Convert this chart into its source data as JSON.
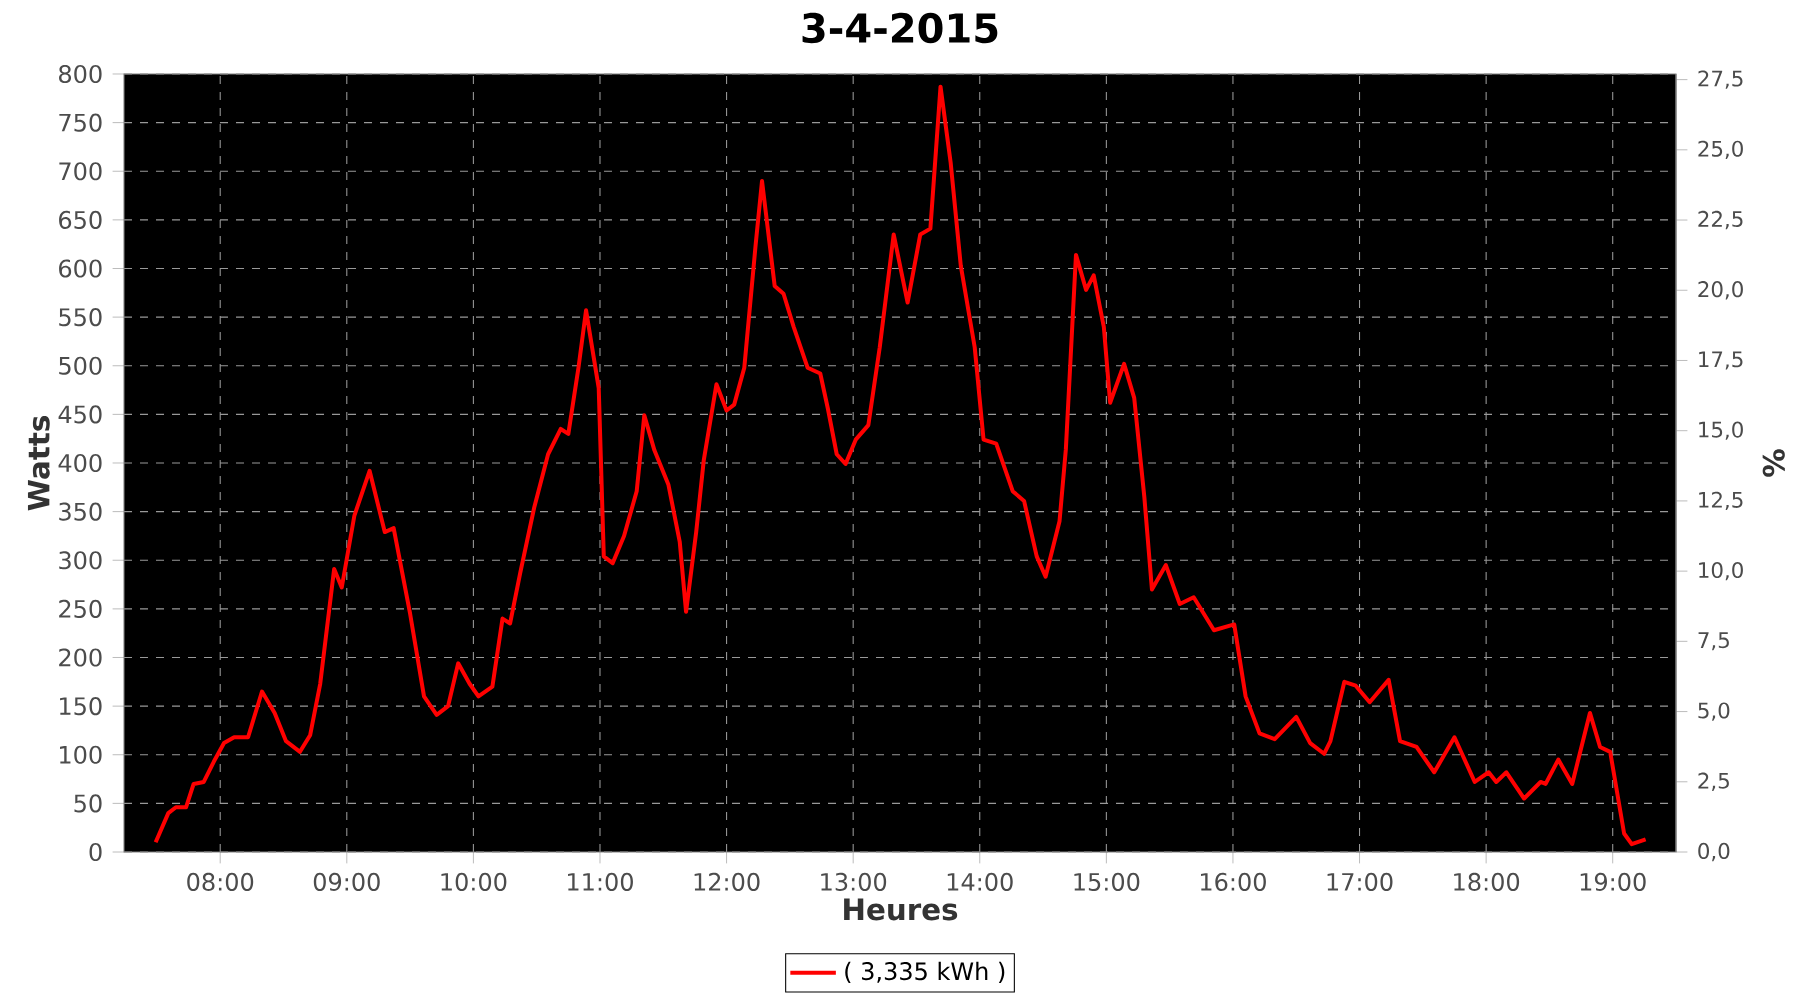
{
  "chart_data": {
    "type": "line",
    "title": "3-4-2015",
    "xlabel": "Heures",
    "ylabel": "Watts",
    "y2label": "%",
    "x": [
      7.49,
      7.59,
      7.65,
      7.73,
      7.79,
      7.87,
      7.95,
      8.03,
      8.11,
      8.22,
      8.33,
      8.43,
      8.52,
      8.63,
      8.71,
      8.79,
      8.9,
      8.96,
      9.06,
      9.18,
      9.3,
      9.37,
      9.5,
      9.61,
      9.71,
      9.8,
      9.88,
      9.97,
      10.04,
      10.15,
      10.23,
      10.29,
      10.37,
      10.48,
      10.59,
      10.69,
      10.75,
      10.83,
      10.89,
      10.99,
      11.03,
      11.1,
      11.19,
      11.29,
      11.35,
      11.43,
      11.54,
      11.63,
      11.68,
      11.76,
      11.82,
      11.92,
      12.0,
      12.06,
      12.14,
      12.23,
      12.28,
      12.38,
      12.45,
      12.53,
      12.64,
      12.74,
      12.8,
      12.87,
      12.94,
      13.02,
      13.12,
      13.21,
      13.32,
      13.43,
      13.53,
      13.61,
      13.69,
      13.77,
      13.85,
      13.96,
      14.03,
      14.13,
      14.26,
      14.35,
      14.45,
      14.52,
      14.63,
      14.68,
      14.76,
      14.84,
      14.9,
      14.98,
      15.03,
      15.14,
      15.22,
      15.3,
      15.36,
      15.47,
      15.58,
      15.69,
      15.85,
      16.01,
      16.1,
      16.21,
      16.33,
      16.5,
      16.61,
      16.72,
      16.77,
      16.88,
      16.97,
      17.08,
      17.23,
      17.32,
      17.45,
      17.59,
      17.75,
      17.91,
      18.02,
      18.08,
      18.16,
      18.3,
      18.43,
      18.47,
      18.57,
      18.68,
      18.82,
      18.9,
      18.98,
      19.09,
      19.15,
      19.26
    ],
    "series": [
      {
        "name": "( 3,335 kWh )",
        "color": "#ff0000",
        "values": [
          10,
          40,
          46,
          46,
          70,
          72,
          93,
          112,
          118,
          118,
          165,
          143,
          114,
          103,
          120,
          173,
          291,
          272,
          346,
          392,
          329,
          333,
          245,
          160,
          141,
          150,
          194,
          173,
          160,
          170,
          240,
          235,
          287,
          354,
          409,
          435,
          430,
          498,
          557,
          477,
          304,
          297,
          325,
          371,
          449,
          413,
          378,
          319,
          247,
          329,
          403,
          481,
          454,
          460,
          498,
          625,
          690,
          582,
          574,
          540,
          498,
          492,
          456,
          409,
          399,
          424,
          439,
          519,
          635,
          565,
          635,
          641,
          787,
          709,
          603,
          519,
          424,
          420,
          371,
          361,
          304,
          283,
          340,
          414,
          614,
          578,
          593,
          540,
          462,
          502,
          467,
          365,
          270,
          295,
          255,
          262,
          228,
          234,
          160,
          122,
          116,
          139,
          112,
          101,
          114,
          175,
          171,
          154,
          177,
          114,
          108,
          82,
          118,
          72,
          82,
          72,
          82,
          55,
          72,
          70,
          95,
          70,
          143,
          108,
          103,
          19,
          8,
          13
        ]
      }
    ],
    "xlim": [
      7.24,
      19.5
    ],
    "xticks": [
      {
        "value": 8,
        "label": "08:00"
      },
      {
        "value": 9,
        "label": "09:00"
      },
      {
        "value": 10,
        "label": "10:00"
      },
      {
        "value": 11,
        "label": "11:00"
      },
      {
        "value": 12,
        "label": "12:00"
      },
      {
        "value": 13,
        "label": "13:00"
      },
      {
        "value": 14,
        "label": "14:00"
      },
      {
        "value": 15,
        "label": "15:00"
      },
      {
        "value": 16,
        "label": "16:00"
      },
      {
        "value": 17,
        "label": "17:00"
      },
      {
        "value": 18,
        "label": "18:00"
      },
      {
        "value": 19,
        "label": "19:00"
      }
    ],
    "ylim": [
      0,
      800
    ],
    "yticks": [
      0,
      50,
      100,
      150,
      200,
      250,
      300,
      350,
      400,
      450,
      500,
      550,
      600,
      650,
      700,
      750,
      800
    ],
    "y2lim": [
      0,
      27.7
    ],
    "y2ticks": [
      {
        "value": 0,
        "label": "0,0"
      },
      {
        "value": 2.5,
        "label": "2,5"
      },
      {
        "value": 5,
        "label": "5,0"
      },
      {
        "value": 7.5,
        "label": "7,5"
      },
      {
        "value": 10,
        "label": "10,0"
      },
      {
        "value": 12.5,
        "label": "12,5"
      },
      {
        "value": 15,
        "label": "15,0"
      },
      {
        "value": 17.5,
        "label": "17,5"
      },
      {
        "value": 20,
        "label": "20,0"
      },
      {
        "value": 22.5,
        "label": "22,5"
      },
      {
        "value": 25,
        "label": "25,0"
      },
      {
        "value": 27.5,
        "label": "27,5"
      }
    ],
    "grid": true,
    "legend": "bottom",
    "marker": "none",
    "line_style": "solid"
  }
}
